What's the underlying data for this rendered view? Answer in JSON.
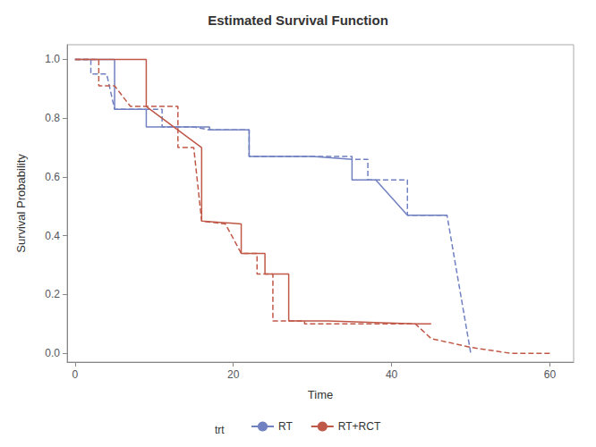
{
  "chart_data": {
    "type": "line",
    "title": "Estimated Survival Function",
    "x_label": "Time",
    "y_label": "Survival Probability",
    "xlim": [
      -1,
      63
    ],
    "ylim": [
      -0.03,
      1.05
    ],
    "xticks": [
      0,
      20,
      40,
      60
    ],
    "yticks": [
      {
        "value": 0.0,
        "label": "0.0"
      },
      {
        "value": 0.2,
        "label": "0.2"
      },
      {
        "value": 0.4,
        "label": "0.4"
      },
      {
        "value": 0.6,
        "label": "0.6"
      },
      {
        "value": 0.8,
        "label": "0.8"
      },
      {
        "value": 1.0,
        "label": "1.0"
      }
    ],
    "grid": false,
    "legend": "bottom",
    "legend_title": "trt",
    "series": [
      {
        "name": "RT",
        "color": "#7080C0",
        "line_style": "solid",
        "x": [
          0,
          5,
          5,
          9,
          9,
          17,
          17,
          22,
          22,
          30,
          30,
          35,
          35,
          38,
          38,
          42,
          42,
          47
        ],
        "values": [
          1.0,
          1.0,
          0.83,
          0.83,
          0.77,
          0.77,
          0.76,
          0.76,
          0.67,
          0.67,
          0.67,
          0.66,
          0.59,
          0.59,
          0.59,
          0.47,
          0.47,
          0.47
        ]
      },
      {
        "name": "RT",
        "color": "#7080C0",
        "line_style": "dashed",
        "x": [
          0,
          2,
          2,
          4,
          4,
          5,
          9,
          9,
          11,
          11,
          15,
          15,
          17,
          22,
          22,
          26,
          26,
          30,
          35,
          35,
          37,
          37,
          38,
          42,
          42,
          45,
          45,
          47,
          47,
          50
        ],
        "values": [
          1.0,
          1.0,
          0.95,
          0.95,
          0.95,
          0.83,
          0.83,
          0.83,
          0.83,
          0.77,
          0.77,
          0.77,
          0.76,
          0.76,
          0.67,
          0.67,
          0.67,
          0.67,
          0.67,
          0.66,
          0.66,
          0.59,
          0.59,
          0.59,
          0.47,
          0.47,
          0.47,
          0.47,
          0.47,
          0.0
        ]
      },
      {
        "name": "RT+RCT",
        "color": "#C05848",
        "line_style": "solid",
        "x": [
          0,
          9,
          9,
          16,
          16,
          21,
          21,
          24,
          24,
          27,
          27,
          32,
          32,
          43,
          43,
          45
        ],
        "values": [
          1.0,
          1.0,
          0.84,
          0.7,
          0.45,
          0.44,
          0.34,
          0.34,
          0.27,
          0.27,
          0.11,
          0.11,
          0.11,
          0.1,
          0.1,
          0.1
        ]
      },
      {
        "name": "RT+RCT",
        "color": "#C05848",
        "line_style": "dashed",
        "x": [
          0,
          3,
          3,
          5,
          5,
          7,
          7,
          9,
          9,
          11,
          11,
          13,
          13,
          15,
          15,
          16,
          16,
          19,
          19,
          21,
          23,
          23,
          24,
          25,
          25,
          27,
          29,
          29,
          32,
          37,
          37,
          38,
          38,
          43,
          43,
          45,
          45,
          50,
          50,
          55,
          55,
          60
        ],
        "values": [
          1.0,
          1.0,
          0.91,
          0.91,
          0.91,
          0.84,
          0.84,
          0.84,
          0.84,
          0.84,
          0.84,
          0.84,
          0.7,
          0.7,
          0.7,
          0.45,
          0.45,
          0.44,
          0.44,
          0.34,
          0.34,
          0.27,
          0.27,
          0.27,
          0.11,
          0.11,
          0.11,
          0.1,
          0.1,
          0.1,
          0.1,
          0.1,
          0.1,
          0.1,
          0.1,
          0.05,
          0.05,
          0.02,
          0.02,
          0.0,
          0.0,
          0.0
        ]
      }
    ]
  }
}
